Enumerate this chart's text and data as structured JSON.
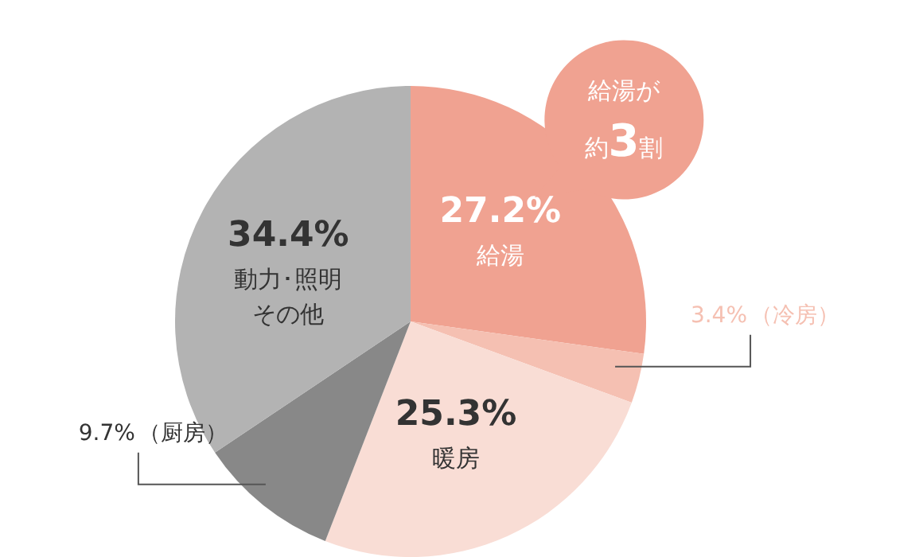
{
  "chart_data": {
    "type": "pie",
    "categories": [
      "給湯",
      "（冷房）",
      "暖房",
      "（厨房）",
      "動力･照明その他"
    ],
    "values": [
      27.2,
      3.4,
      25.3,
      9.7,
      34.4
    ],
    "value_labels": [
      "27.2%",
      "3.4%",
      "25.3%",
      "9.7%",
      "34.4%"
    ],
    "colors": [
      "#f0a291",
      "#f5c0b2",
      "#f9ddd5",
      "#888888",
      "#b3b3b3"
    ],
    "annotations": [
      "給湯が",
      "約3割"
    ],
    "legend": false
  }
}
